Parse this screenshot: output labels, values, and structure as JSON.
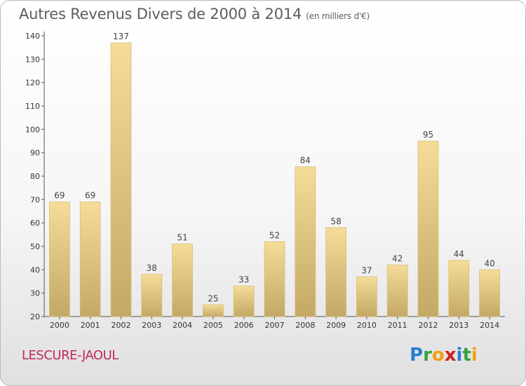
{
  "header": {
    "title": "Autres Revenus Divers de 2000 à 2014",
    "unit": "(en milliers d'€)"
  },
  "footer": {
    "city": "LESCURE-JAOUL",
    "logo": [
      "P",
      "r",
      "o",
      "x",
      "i",
      "t",
      "i"
    ]
  },
  "chart_data": {
    "type": "bar",
    "categories": [
      "2000",
      "2001",
      "2002",
      "2003",
      "2004",
      "2005",
      "2006",
      "2007",
      "2008",
      "2009",
      "2010",
      "2011",
      "2012",
      "2013",
      "2014"
    ],
    "values": [
      69,
      69,
      137,
      38,
      51,
      25,
      33,
      52,
      84,
      58,
      37,
      42,
      95,
      44,
      40
    ],
    "title": "Autres Revenus Divers de 2000 à 2014",
    "xlabel": "",
    "ylabel": "",
    "ylim": [
      20,
      140
    ],
    "yticks": [
      20,
      30,
      40,
      50,
      60,
      70,
      80,
      90,
      100,
      110,
      120,
      130,
      140
    ],
    "grid": false,
    "colors": {
      "bar_top": "#f5dc98",
      "bar_bottom": "#c3a866",
      "bar_edge": "#d9bf78",
      "axis": "#555555",
      "text": "#333333"
    }
  }
}
